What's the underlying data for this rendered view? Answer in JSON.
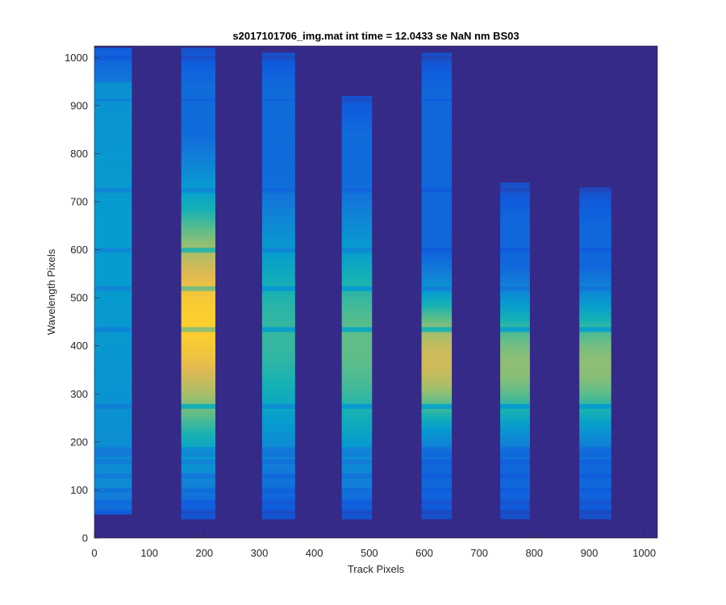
{
  "chart_data": {
    "type": "heatmap",
    "title": "s2017101706_img.mat int time = 12.0433 se  NaN nm BS03",
    "xlabel": "Track Pixels",
    "ylabel": "Wavelength Pixels",
    "xlim": [
      0,
      1024
    ],
    "ylim": [
      0,
      1024
    ],
    "xticks": [
      "0",
      "100",
      "200",
      "300",
      "400",
      "500",
      "600",
      "700",
      "800",
      "900",
      "1000"
    ],
    "yticks": [
      "0",
      "100",
      "200",
      "300",
      "400",
      "500",
      "600",
      "700",
      "800",
      "900",
      "1000"
    ],
    "colormap": "parula",
    "background_color": "#352a87",
    "tracks": [
      {
        "x_start": 0,
        "x_end": 68,
        "y_bottom": 50,
        "y_top": 1020,
        "peak_level": 0.45,
        "peak_center": 600,
        "profile": "flat"
      },
      {
        "x_start": 158,
        "x_end": 220,
        "y_bottom": 40,
        "y_top": 1020,
        "peak_level": 0.93,
        "peak_center": 450,
        "profile": "broad"
      },
      {
        "x_start": 305,
        "x_end": 365,
        "y_bottom": 40,
        "y_top": 1010,
        "peak_level": 0.6,
        "peak_center": 420,
        "profile": "broad"
      },
      {
        "x_start": 450,
        "x_end": 505,
        "y_bottom": 40,
        "y_top": 920,
        "peak_level": 0.66,
        "peak_center": 400,
        "profile": "broad"
      },
      {
        "x_start": 595,
        "x_end": 650,
        "y_bottom": 40,
        "y_top": 1010,
        "peak_level": 0.82,
        "peak_center": 370,
        "profile": "peaked"
      },
      {
        "x_start": 738,
        "x_end": 792,
        "y_bottom": 40,
        "y_top": 740,
        "peak_level": 0.72,
        "peak_center": 360,
        "profile": "peaked"
      },
      {
        "x_start": 882,
        "x_end": 940,
        "y_bottom": 40,
        "y_top": 730,
        "peak_level": 0.72,
        "peak_center": 360,
        "profile": "peaked"
      }
    ],
    "dark_bands_y": [
      55,
      75,
      100,
      130,
      160,
      175,
      185,
      275,
      435,
      520,
      600,
      725,
      912,
      1000
    ],
    "grid": false
  }
}
